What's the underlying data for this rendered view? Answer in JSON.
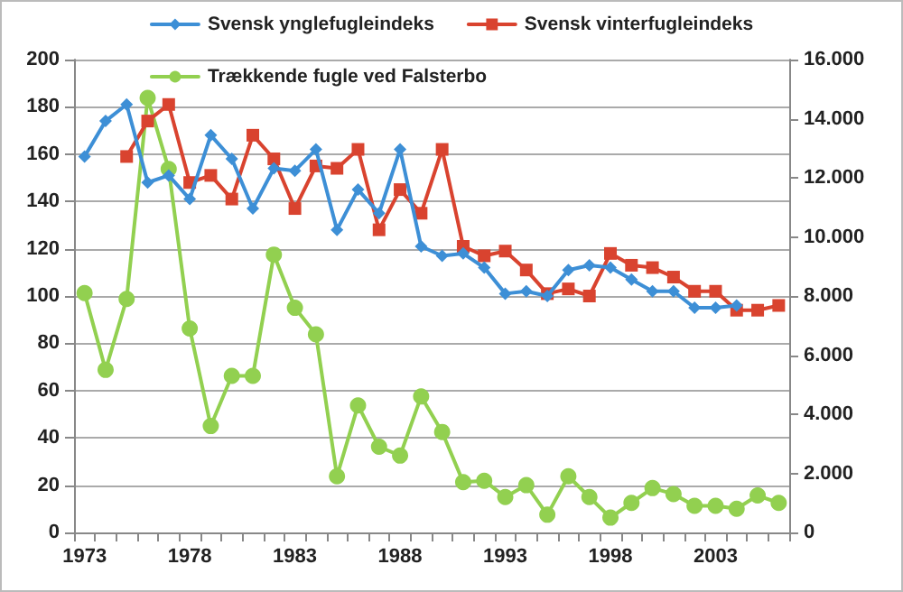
{
  "chart_data": {
    "type": "line",
    "categories": [
      "1973",
      null,
      null,
      null,
      null,
      "1978",
      null,
      null,
      null,
      null,
      "1983",
      null,
      null,
      null,
      null,
      "1988",
      null,
      null,
      null,
      null,
      "1993",
      null,
      null,
      null,
      null,
      "1998",
      null,
      null,
      null,
      null,
      "2003",
      null,
      null,
      null
    ],
    "series": [
      {
        "name": "Svensk ynglefugleindeks",
        "color": "#3d8fd6",
        "marker": "diamond",
        "values": [
          159,
          174,
          181,
          148,
          151,
          141,
          168,
          158,
          137,
          154,
          153,
          162,
          128,
          145,
          135,
          162,
          121,
          117,
          118,
          112,
          101,
          102,
          100,
          111,
          113,
          112,
          107,
          102,
          102,
          95,
          95,
          96,
          null,
          null
        ]
      },
      {
        "name": "Svensk vinterfugleindeks",
        "color": "#d9432f",
        "marker": "square",
        "values": [
          null,
          null,
          159,
          174,
          181,
          148,
          151,
          141,
          168,
          158,
          137,
          155,
          154,
          162,
          128,
          145,
          135,
          162,
          121,
          117,
          119,
          111,
          101,
          103,
          100,
          118,
          113,
          112,
          108,
          102,
          102,
          94,
          94,
          96
        ]
      },
      {
        "name": "Trækkende fugle ved Falsterbo",
        "color": "#92d050",
        "marker": "circle",
        "axis": "y2",
        "values": [
          8100,
          5500,
          7900,
          14700,
          12300,
          6900,
          3600,
          5300,
          5300,
          9400,
          7600,
          6700,
          1900,
          4300,
          2900,
          2600,
          4600,
          3400,
          1700,
          1750,
          1200,
          1600,
          600,
          1900,
          1200,
          500,
          1000,
          1500,
          1300,
          900,
          900,
          800,
          1250,
          1000
        ]
      }
    ],
    "ylim": [
      0,
      200
    ],
    "yticks": [
      0,
      20,
      40,
      60,
      80,
      100,
      120,
      140,
      160,
      180,
      200
    ],
    "y2lim": [
      0,
      16000
    ],
    "y2ticks": [
      {
        "value": 0,
        "label": "0"
      },
      {
        "value": 2000,
        "label": "2.000"
      },
      {
        "value": 4000,
        "label": "4.000"
      },
      {
        "value": 6000,
        "label": "6.000"
      },
      {
        "value": 8000,
        "label": "8.000"
      },
      {
        "value": 10000,
        "label": "10.000"
      },
      {
        "value": 12000,
        "label": "12.000"
      },
      {
        "value": 14000,
        "label": "14.000"
      },
      {
        "value": 16000,
        "label": "16.000"
      }
    ],
    "grid": "y",
    "legend": "top",
    "line_style": "solid"
  }
}
